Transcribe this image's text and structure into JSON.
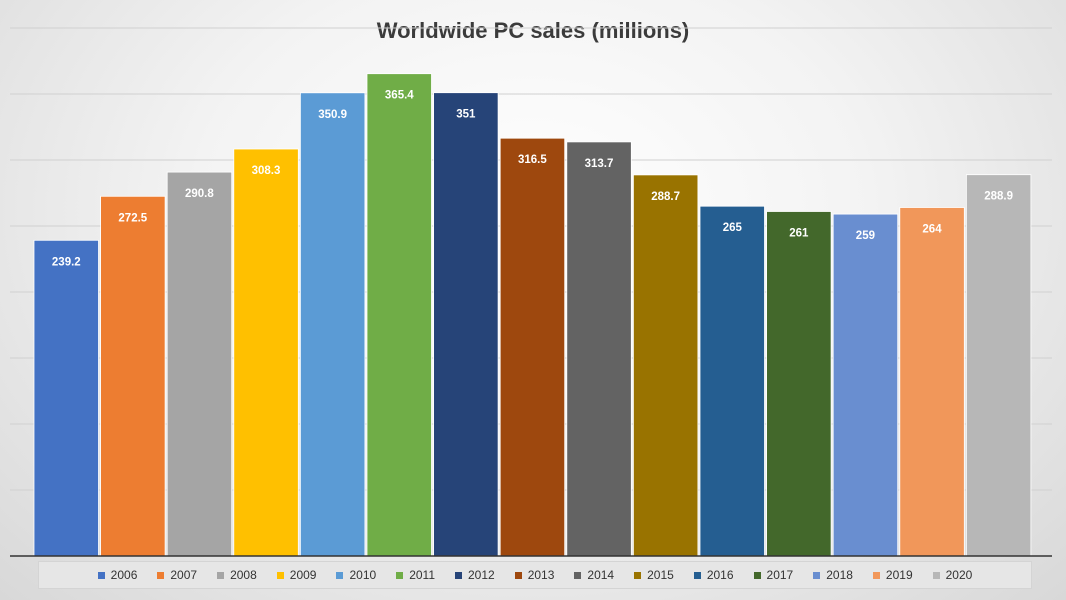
{
  "chart_data": {
    "type": "bar",
    "title": "Worldwide PC sales (millions)",
    "xlabel": "",
    "ylabel": "",
    "ylim": [
      0,
      400
    ],
    "grid": true,
    "legend_position": "bottom",
    "categories": [
      "2006",
      "2007",
      "2008",
      "2009",
      "2010",
      "2011",
      "2012",
      "2013",
      "2014",
      "2015",
      "2016",
      "2017",
      "2018",
      "2019",
      "2020"
    ],
    "values": [
      239.2,
      272.5,
      290.8,
      308.3,
      350.9,
      365.4,
      351,
      316.5,
      313.7,
      288.7,
      265,
      261,
      259,
      264,
      288.9
    ],
    "data_labels": [
      "239.2",
      "272.5",
      "290.8",
      "308.3",
      "350.9",
      "365.4",
      "351",
      "316.5",
      "313.7",
      "288.7",
      "265",
      "261",
      "259",
      "264",
      "288.9"
    ],
    "colors": [
      "#4472C4",
      "#ED7D31",
      "#A5A5A5",
      "#FFC000",
      "#5B9BD5",
      "#70AD47",
      "#264478",
      "#9E480E",
      "#636363",
      "#997300",
      "#255E91",
      "#43682B",
      "#698ED0",
      "#F1975A",
      "#B7B7B7"
    ]
  }
}
